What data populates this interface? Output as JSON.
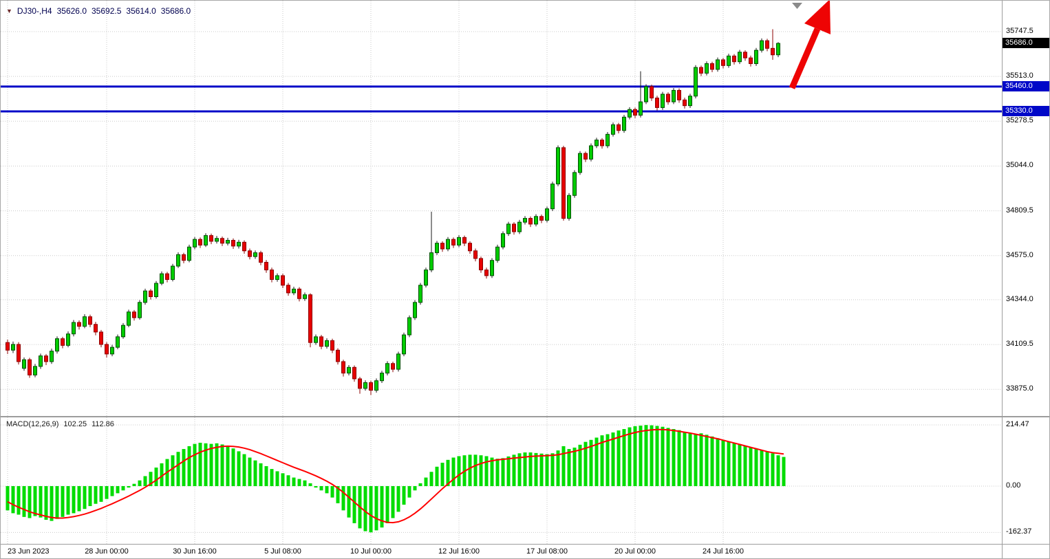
{
  "header": {
    "symbol": "DJ30-,H4",
    "open": "35626.0",
    "high": "35692.5",
    "low": "35614.0",
    "close": "35686.0"
  },
  "price_axis": {
    "ticks": [
      "35747.5",
      "35513.0",
      "35278.5",
      "35044.0",
      "34809.5",
      "34575.0",
      "34344.0",
      "34109.5",
      "33875.0"
    ],
    "current_price": 35686.0,
    "current_price_label": "35686.0"
  },
  "levels": [
    {
      "price": 35460.0,
      "label": "35460.0"
    },
    {
      "price": 35330.0,
      "label": "35330.0"
    }
  ],
  "time_axis": {
    "labels": [
      "23 Jun 2023",
      "28 Jun 00:00",
      "30 Jun 16:00",
      "5 Jul 08:00",
      "10 Jul 00:00",
      "12 Jul 16:00",
      "17 Jul 08:00",
      "20 Jul 00:00",
      "24 Jul 16:00"
    ],
    "indices": [
      0,
      18,
      34,
      50,
      66,
      82,
      98,
      114,
      130
    ]
  },
  "macd": {
    "title": "MACD(12,26,9)",
    "value": "102.25",
    "signal_value": "112.86",
    "ticks": [
      "214.47",
      "0.00",
      "-162.37"
    ]
  },
  "colors": {
    "up_body": "#00CC00",
    "up_stroke": "#004d00",
    "down_body": "#E60000",
    "down_stroke": "#8d0000",
    "wick": "#1a1a1a",
    "histogram": "#00DC00",
    "signal_line": "#FF0000",
    "level_line": "#0008C8",
    "badge_current_bg": "#000000",
    "arrow": "#EE0404",
    "grid": "#c9c9c9",
    "separator": "#9c9c9c",
    "shift_marker": "#8a8a8a"
  },
  "chart_data": [
    {
      "type": "candlestick",
      "title": "DJ30-,H4",
      "y_tick_labels": [
        35747.5,
        35513.0,
        35278.5,
        35044.0,
        34809.5,
        34575.0,
        34344.0,
        34109.5,
        33875.0
      ],
      "x_tick_labels": [
        "23 Jun 2023",
        "28 Jun 00:00",
        "30 Jun 16:00",
        "5 Jul 08:00",
        "10 Jul 00:00",
        "12 Jul 16:00",
        "17 Jul 08:00",
        "20 Jul 00:00",
        "24 Jul 16:00"
      ],
      "x_tick_indices": [
        0,
        18,
        34,
        50,
        66,
        82,
        98,
        114,
        130
      ],
      "horizontal_levels": [
        35460.0,
        35330.0
      ],
      "last_price": 35686.0,
      "ohlc": [
        [
          34120,
          34135,
          34060,
          34080
        ],
        [
          34080,
          34125,
          34065,
          34110
        ],
        [
          34110,
          34122,
          34005,
          34020
        ],
        [
          33985,
          34042,
          33972,
          34030
        ],
        [
          34030,
          34040,
          33935,
          33950
        ],
        [
          33950,
          34008,
          33938,
          33995
        ],
        [
          33995,
          34062,
          33982,
          34050
        ],
        [
          34050,
          34060,
          34002,
          34020
        ],
        [
          34020,
          34088,
          34008,
          34075
        ],
        [
          34075,
          34152,
          34062,
          34140
        ],
        [
          34140,
          34150,
          34090,
          34105
        ],
        [
          34105,
          34178,
          34095,
          34165
        ],
        [
          34165,
          34238,
          34152,
          34225
        ],
        [
          34225,
          34236,
          34188,
          34205
        ],
        [
          34205,
          34268,
          34195,
          34255
        ],
        [
          34255,
          34266,
          34200,
          34215
        ],
        [
          34215,
          34228,
          34158,
          34175
        ],
        [
          34175,
          34186,
          34095,
          34110
        ],
        [
          34110,
          34122,
          34042,
          34060
        ],
        [
          34060,
          34108,
          34048,
          34095
        ],
        [
          34095,
          34162,
          34085,
          34150
        ],
        [
          34150,
          34222,
          34140,
          34210
        ],
        [
          34210,
          34292,
          34200,
          34280
        ],
        [
          34280,
          34290,
          34235,
          34250
        ],
        [
          34250,
          34342,
          34240,
          34330
        ],
        [
          34330,
          34402,
          34318,
          34390
        ],
        [
          34390,
          34400,
          34345,
          34360
        ],
        [
          34360,
          34442,
          34350,
          34430
        ],
        [
          34430,
          34492,
          34420,
          34480
        ],
        [
          34480,
          34490,
          34435,
          34450
        ],
        [
          34450,
          34532,
          34440,
          34520
        ],
        [
          34520,
          34592,
          34510,
          34580
        ],
        [
          34580,
          34590,
          34535,
          34550
        ],
        [
          34550,
          34632,
          34540,
          34620
        ],
        [
          34620,
          34672,
          34608,
          34660
        ],
        [
          34660,
          34670,
          34615,
          34630
        ],
        [
          34630,
          34692,
          34620,
          34680
        ],
        [
          34680,
          34690,
          34635,
          34650
        ],
        [
          34650,
          34678,
          34638,
          34665
        ],
        [
          34665,
          34675,
          34625,
          34640
        ],
        [
          34640,
          34668,
          34628,
          34655
        ],
        [
          34655,
          34665,
          34610,
          34625
        ],
        [
          34625,
          34658,
          34612,
          34645
        ],
        [
          34645,
          34655,
          34585,
          34600
        ],
        [
          34600,
          34612,
          34555,
          34570
        ],
        [
          34570,
          34602,
          34558,
          34590
        ],
        [
          34590,
          34600,
          34525,
          34540
        ],
        [
          34540,
          34552,
          34485,
          34500
        ],
        [
          34500,
          34512,
          34435,
          34450
        ],
        [
          34450,
          34482,
          34438,
          34470
        ],
        [
          34470,
          34480,
          34405,
          34420
        ],
        [
          34420,
          34432,
          34365,
          34380
        ],
        [
          34380,
          34412,
          34368,
          34400
        ],
        [
          34400,
          34410,
          34335,
          34350
        ],
        [
          34350,
          34382,
          34338,
          34370
        ],
        [
          34370,
          34378,
          34095,
          34120
        ],
        [
          34120,
          34162,
          34108,
          34150
        ],
        [
          34150,
          34160,
          34085,
          34100
        ],
        [
          34100,
          34142,
          34088,
          34130
        ],
        [
          34130,
          34140,
          34065,
          34080
        ],
        [
          34080,
          34090,
          34005,
          34020
        ],
        [
          34020,
          34030,
          33942,
          33960
        ],
        [
          33960,
          34002,
          33948,
          33990
        ],
        [
          33990,
          34000,
          33915,
          33930
        ],
        [
          33930,
          33940,
          33852,
          33880
        ],
        [
          33880,
          33922,
          33868,
          33910
        ],
        [
          33910,
          33920,
          33845,
          33870
        ],
        [
          33870,
          33932,
          33858,
          33920
        ],
        [
          33920,
          33972,
          33908,
          33960
        ],
        [
          33960,
          34022,
          33948,
          34010
        ],
        [
          34010,
          34020,
          33965,
          33980
        ],
        [
          33980,
          34072,
          33968,
          34060
        ],
        [
          34060,
          34172,
          34048,
          34160
        ],
        [
          34160,
          34262,
          34148,
          34250
        ],
        [
          34250,
          34342,
          34238,
          34330
        ],
        [
          34330,
          34432,
          34318,
          34420
        ],
        [
          34420,
          34512,
          34408,
          34500
        ],
        [
          34500,
          34805,
          34488,
          34590
        ],
        [
          34590,
          34652,
          34578,
          34640
        ],
        [
          34640,
          34650,
          34595,
          34610
        ],
        [
          34610,
          34672,
          34598,
          34660
        ],
        [
          34660,
          34670,
          34615,
          34630
        ],
        [
          34630,
          34682,
          34618,
          34670
        ],
        [
          34670,
          34680,
          34625,
          34640
        ],
        [
          34640,
          34650,
          34585,
          34600
        ],
        [
          34600,
          34612,
          34545,
          34560
        ],
        [
          34560,
          34570,
          34485,
          34500
        ],
        [
          34500,
          34512,
          34455,
          34470
        ],
        [
          34470,
          34562,
          34458,
          34550
        ],
        [
          34550,
          34632,
          34538,
          34620
        ],
        [
          34620,
          34702,
          34608,
          34690
        ],
        [
          34690,
          34752,
          34678,
          34740
        ],
        [
          34740,
          34750,
          34685,
          34700
        ],
        [
          34700,
          34762,
          34688,
          34750
        ],
        [
          34750,
          34782,
          34738,
          34770
        ],
        [
          34770,
          34780,
          34725,
          34740
        ],
        [
          34740,
          34792,
          34728,
          34780
        ],
        [
          34780,
          34790,
          34745,
          34760
        ],
        [
          34760,
          34832,
          34748,
          34820
        ],
        [
          34820,
          34962,
          34808,
          34950
        ],
        [
          34950,
          35152,
          34938,
          35140
        ],
        [
          35140,
          35150,
          34758,
          34770
        ],
        [
          34770,
          34902,
          34758,
          34890
        ],
        [
          34890,
          35022,
          34878,
          35010
        ],
        [
          35010,
          35122,
          34998,
          35110
        ],
        [
          35110,
          35120,
          35065,
          35080
        ],
        [
          35080,
          35162,
          35068,
          35150
        ],
        [
          35150,
          35192,
          35138,
          35180
        ],
        [
          35180,
          35190,
          35135,
          35150
        ],
        [
          35150,
          35222,
          35138,
          35210
        ],
        [
          35210,
          35272,
          35198,
          35260
        ],
        [
          35260,
          35270,
          35215,
          35230
        ],
        [
          35230,
          35312,
          35218,
          35300
        ],
        [
          35300,
          35352,
          35288,
          35340
        ],
        [
          35340,
          35350,
          35295,
          35310
        ],
        [
          35310,
          35540,
          35298,
          35380
        ],
        [
          35380,
          35472,
          35368,
          35460
        ],
        [
          35460,
          35470,
          35385,
          35400
        ],
        [
          35400,
          35412,
          35335,
          35350
        ],
        [
          35350,
          35432,
          35338,
          35420
        ],
        [
          35420,
          35430,
          35365,
          35380
        ],
        [
          35380,
          35452,
          35368,
          35440
        ],
        [
          35440,
          35450,
          35375,
          35390
        ],
        [
          35390,
          35402,
          35345,
          35360
        ],
        [
          35360,
          35422,
          35348,
          35410
        ],
        [
          35410,
          35572,
          35398,
          35560
        ],
        [
          35560,
          35570,
          35515,
          35530
        ],
        [
          35530,
          35592,
          35518,
          35580
        ],
        [
          35580,
          35590,
          35535,
          35550
        ],
        [
          35550,
          35612,
          35538,
          35600
        ],
        [
          35600,
          35610,
          35555,
          35570
        ],
        [
          35570,
          35632,
          35558,
          35620
        ],
        [
          35620,
          35630,
          35575,
          35590
        ],
        [
          35590,
          35652,
          35578,
          35640
        ],
        [
          35640,
          35650,
          35595,
          35610
        ],
        [
          35610,
          35622,
          35565,
          35580
        ],
        [
          35580,
          35662,
          35568,
          35650
        ],
        [
          35650,
          35712,
          35638,
          35700
        ],
        [
          35700,
          35710,
          35645,
          35660
        ],
        [
          35660,
          35760,
          35600,
          35626
        ],
        [
          35626,
          35692.5,
          35614,
          35686
        ]
      ]
    },
    {
      "type": "bar",
      "name": "MACD(12,26,9)",
      "y_tick_labels": [
        214.47,
        0.0,
        -162.37
      ],
      "current_values": {
        "macd": 102.25,
        "signal": 112.86
      },
      "histogram": [
        -85,
        -95,
        -100,
        -108,
        -112,
        -105,
        -110,
        -118,
        -122,
        -115,
        -108,
        -100,
        -95,
        -88,
        -80,
        -70,
        -62,
        -55,
        -45,
        -35,
        -25,
        -15,
        -5,
        8,
        20,
        35,
        50,
        65,
        80,
        95,
        108,
        120,
        130,
        140,
        148,
        152,
        150,
        148,
        150,
        146,
        140,
        132,
        122,
        112,
        100,
        90,
        80,
        70,
        60,
        52,
        45,
        38,
        30,
        25,
        20,
        10,
        -5,
        -15,
        -25,
        -40,
        -60,
        -85,
        -110,
        -130,
        -148,
        -158,
        -162,
        -155,
        -145,
        -130,
        -112,
        -90,
        -65,
        -40,
        -15,
        10,
        30,
        50,
        68,
        82,
        92,
        100,
        105,
        108,
        110,
        110,
        108,
        105,
        100,
        96,
        98,
        104,
        110,
        115,
        118,
        118,
        116,
        114,
        112,
        115,
        125,
        140,
        130,
        135,
        145,
        155,
        162,
        170,
        178,
        182,
        188,
        195,
        200,
        206,
        210,
        212,
        214,
        213,
        211,
        208,
        204,
        200,
        196,
        190,
        185,
        182,
        185,
        180,
        174,
        168,
        162,
        156,
        150,
        145,
        140,
        135,
        130,
        126,
        120,
        115,
        108,
        102.25
      ],
      "signal": [
        -55,
        -65,
        -74,
        -82,
        -90,
        -96,
        -101,
        -106,
        -110,
        -112,
        -112,
        -110,
        -107,
        -103,
        -98,
        -92,
        -85,
        -78,
        -70,
        -62,
        -53,
        -44,
        -35,
        -25,
        -15,
        -4,
        8,
        21,
        35,
        49,
        62,
        75,
        88,
        100,
        110,
        119,
        126,
        132,
        136,
        139,
        140,
        139,
        137,
        133,
        128,
        121,
        114,
        106,
        98,
        90,
        82,
        74,
        66,
        59,
        52,
        44,
        36,
        27,
        17,
        6,
        -7,
        -22,
        -39,
        -56,
        -73,
        -89,
        -103,
        -114,
        -122,
        -127,
        -128,
        -125,
        -118,
        -108,
        -95,
        -80,
        -63,
        -45,
        -27,
        -9,
        8,
        24,
        39,
        52,
        63,
        72,
        79,
        85,
        89,
        92,
        94,
        96,
        98,
        100,
        102,
        104,
        105,
        106,
        107,
        108,
        110,
        114,
        118,
        122,
        127,
        133,
        139,
        146,
        153,
        159,
        165,
        171,
        177,
        183,
        188,
        192,
        195,
        197,
        198,
        198,
        197,
        195,
        192,
        189,
        186,
        182,
        178,
        174,
        170,
        166,
        161,
        156,
        151,
        146,
        141,
        136,
        131,
        126,
        121,
        117,
        115,
        112.86
      ]
    }
  ]
}
